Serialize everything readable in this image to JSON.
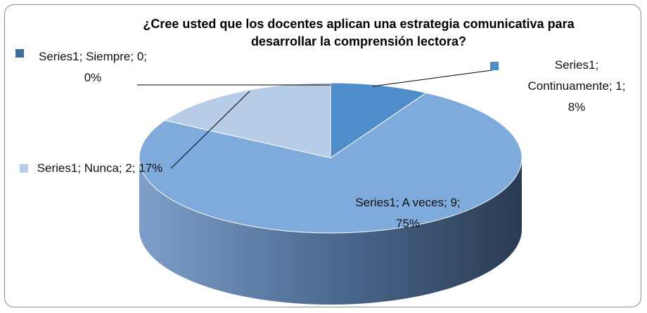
{
  "chart_data": {
    "type": "pie3d",
    "title": "¿Cree usted que los docentes aplican una estrategia comunicativa para desarrollar la comprensión lectora?",
    "categories": [
      "Siempre",
      "Continuamente",
      "A veces",
      "Nunca"
    ],
    "series": [
      {
        "name": "Series1",
        "values": [
          0,
          1,
          9,
          2
        ],
        "value_labels": [
          "Series1; Siempre; 0; 0%",
          "Series1; Continuamente; 1; 8%",
          "Series1; A veces; 9; 75%",
          "Series1; Nunca; 2; 17%"
        ],
        "colors": [
          "#3d6d9e",
          "#4f8cca",
          "#7eaadc",
          "#b7cce6"
        ]
      }
    ]
  }
}
